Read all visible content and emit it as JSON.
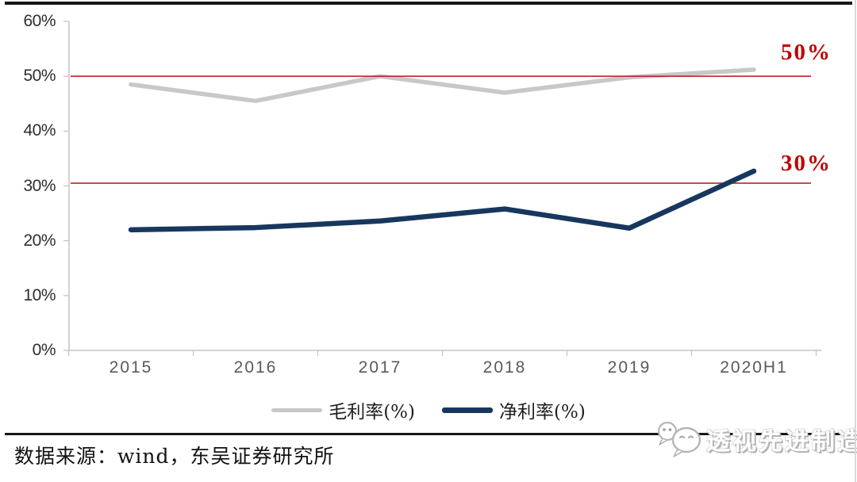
{
  "chart_data": {
    "type": "line",
    "title": "",
    "categories": [
      "2015",
      "2016",
      "2017",
      "2018",
      "2019",
      "2020H1"
    ],
    "series": [
      {
        "name": "毛利率(%)",
        "color": "#c8c8c8",
        "values": [
          48.5,
          45.5,
          50.0,
          47.0,
          49.8,
          51.2
        ]
      },
      {
        "name": "净利率(%)",
        "color": "#17375e",
        "values": [
          22.0,
          22.4,
          23.6,
          25.8,
          22.3,
          32.7
        ]
      }
    ],
    "xlabel": "",
    "ylabel": "",
    "ylim": [
      0,
      60
    ],
    "ytick_step": 10,
    "ytick_labels": [
      "0%",
      "10%",
      "20%",
      "30%",
      "40%",
      "50%",
      "60%"
    ],
    "grid": false,
    "legend_position": "bottom-center",
    "reference_lines": [
      {
        "value": 50,
        "label": "50%",
        "line_color": "#c42323",
        "label_color": "#c00000"
      },
      {
        "value": 30.5,
        "label": "30%",
        "line_color": "#c42323",
        "label_color": "#c00000"
      }
    ]
  },
  "footer": {
    "source": "数据来源：wind，东吴证券研究所"
  },
  "watermark": {
    "text": "透视先进制造",
    "icon": "chat-bubbles-icon"
  },
  "colors": {
    "axis": "#c3c3c3",
    "x_label": "#595959",
    "y_label": "#2e2e2e",
    "rule": "#161616"
  }
}
